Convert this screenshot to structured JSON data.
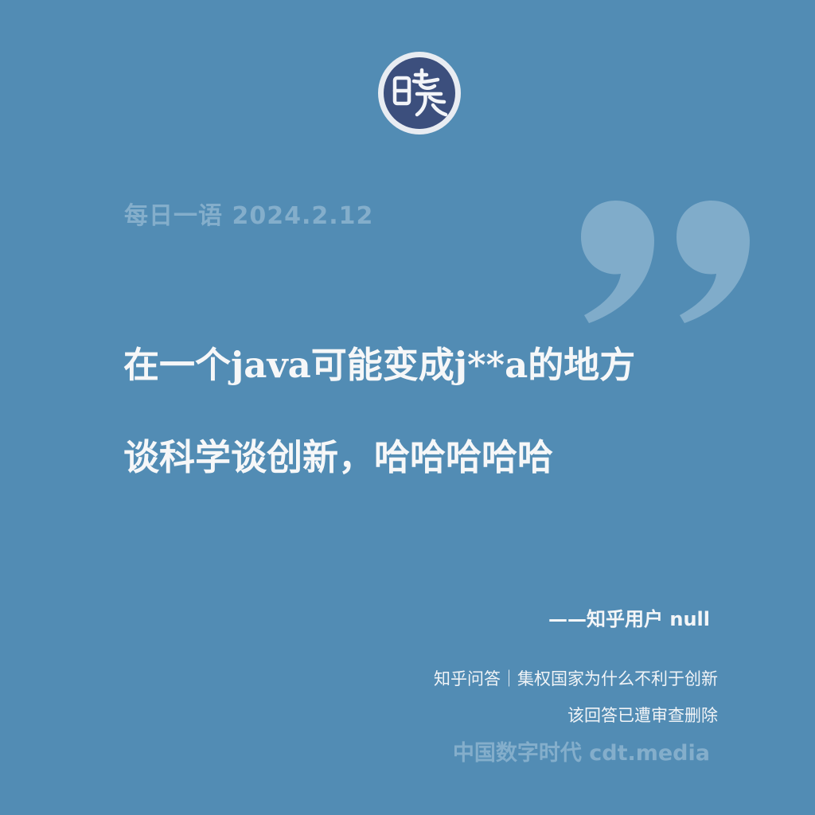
{
  "logo": {
    "glyph": "晓",
    "icon": "seal-logo-icon",
    "colors": {
      "ring": "#e8ecf2",
      "fill": "#3c4f7d"
    }
  },
  "header": {
    "date_line": "每日一语 2024.2.12"
  },
  "quote": {
    "line1": "在一个java可能变成j**a的地方",
    "line2": "谈科学谈创新，哈哈哈哈哈",
    "mark_icon": "closing-quote-icon"
  },
  "attribution": "——知乎用户 null",
  "source": {
    "line1": "知乎问答｜集权国家为什么不利于创新",
    "line2": "该回答已遭审查删除"
  },
  "footer": "中国数字时代 cdt.media",
  "colors": {
    "background": "#528cb4",
    "muted_text": "#84aecb",
    "quote_mark": "#80acca",
    "main_text": "#f6f7f8"
  }
}
